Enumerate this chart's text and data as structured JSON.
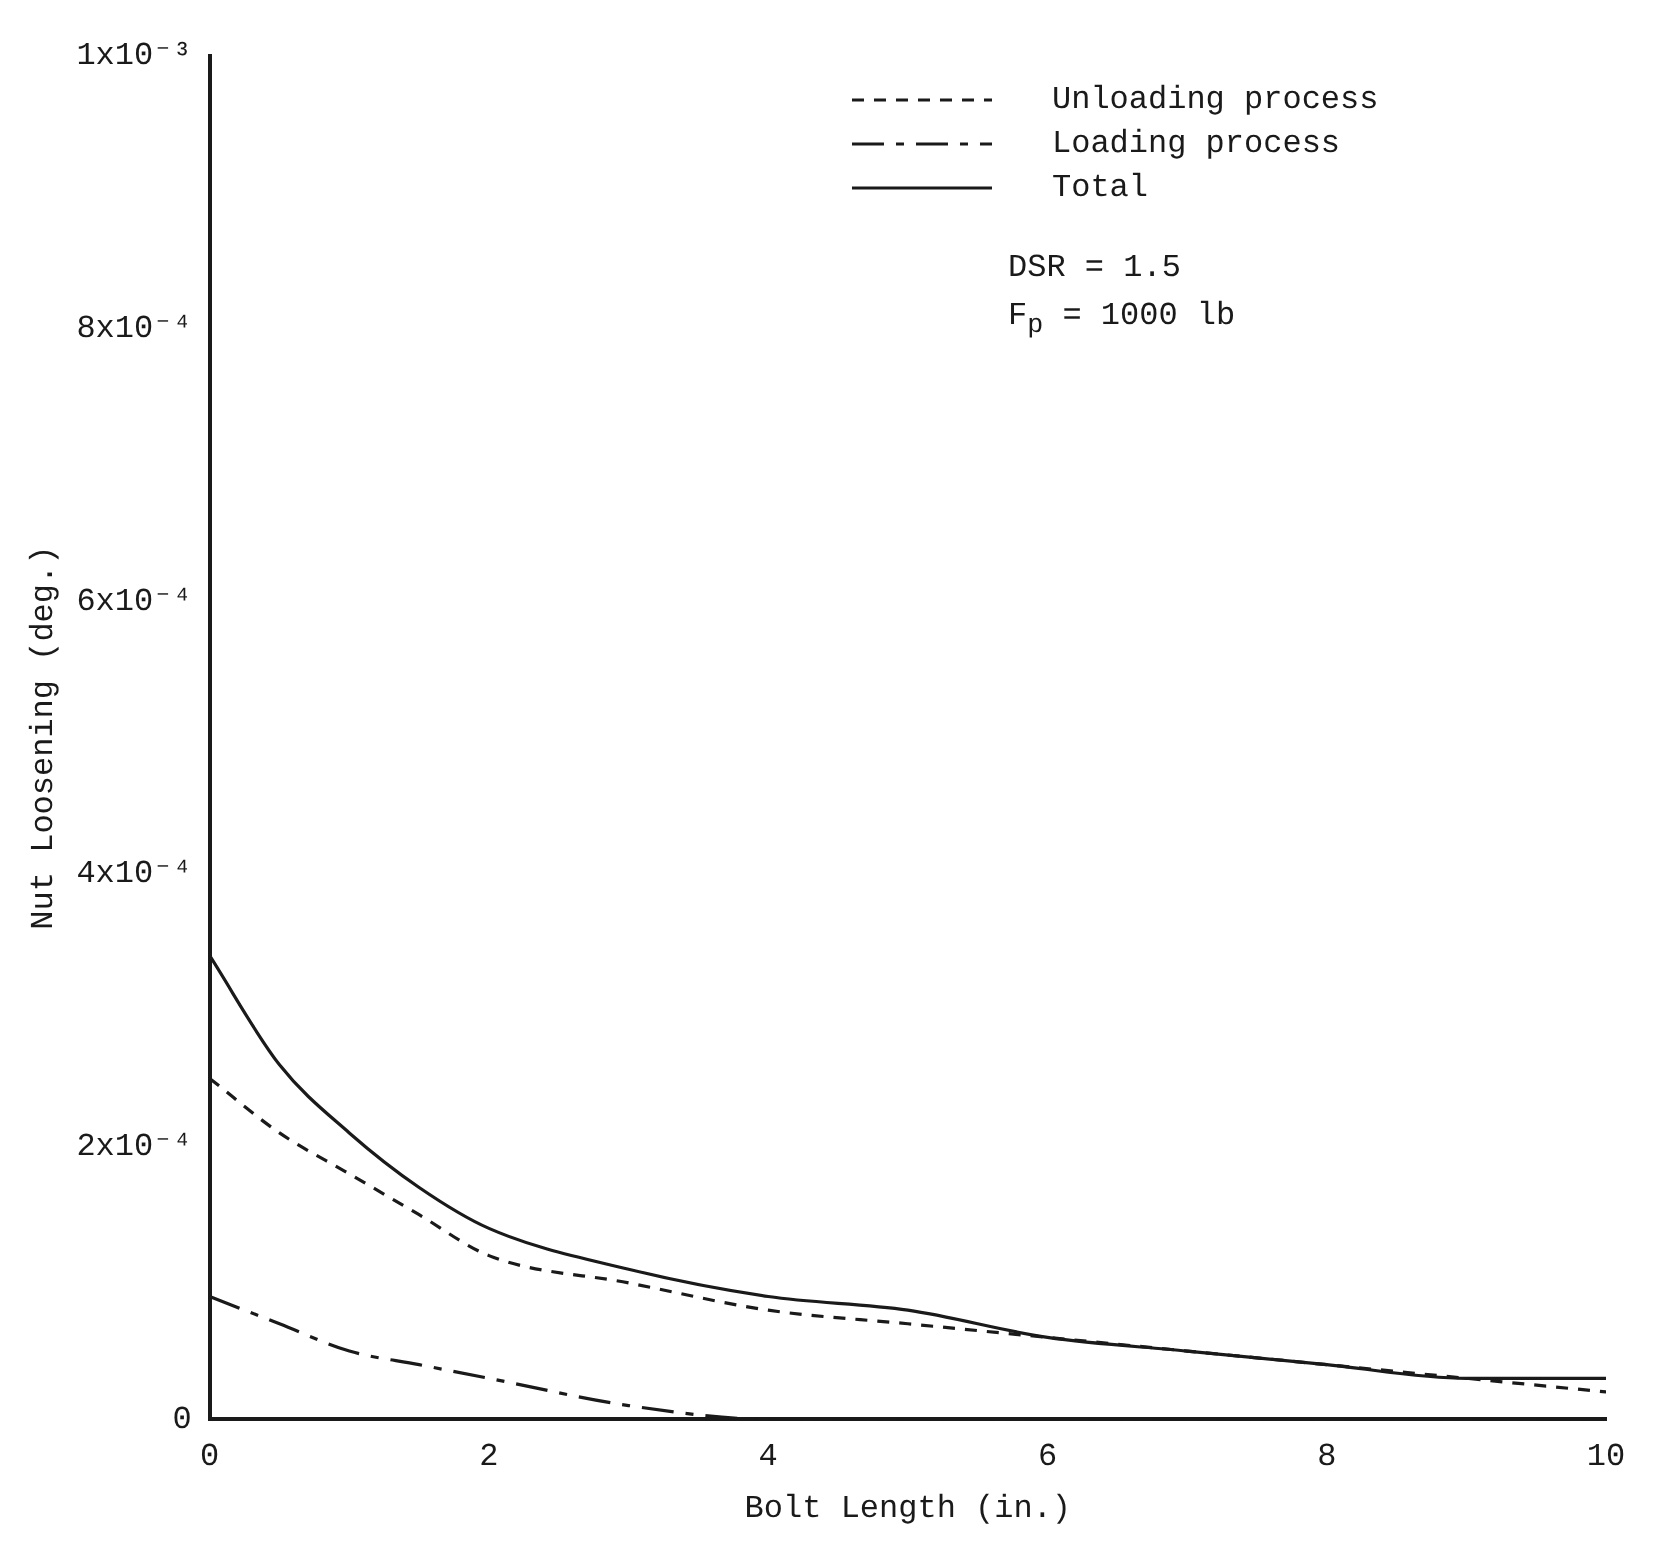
{
  "chart_data": {
    "type": "line",
    "xlabel": "Bolt Length (in.)",
    "ylabel": "Nut Loosening (deg.)",
    "x": [
      0,
      0.5,
      1,
      1.5,
      2,
      3,
      4,
      5,
      6,
      7,
      8,
      9,
      10
    ],
    "series": [
      {
        "name": "Unloading process",
        "color": "#1a1a1a",
        "line_style": "dashed",
        "values": [
          0.00025,
          0.00021,
          0.00018,
          0.00015,
          0.00012,
          0.0001,
          8e-05,
          7e-05,
          6e-05,
          5e-05,
          4e-05,
          3e-05,
          2e-05
        ]
      },
      {
        "name": "Loading process",
        "color": "#1a1a1a",
        "line_style": "dashed",
        "values": [
          9e-05,
          7e-05,
          5e-05,
          4e-05,
          3e-05,
          1e-05,
          0,
          0,
          0,
          0,
          0,
          0,
          0
        ]
      },
      {
        "name": "Total",
        "color": "#1a1a1a",
        "line_style": "solid",
        "values": [
          0.00034,
          0.00026,
          0.00021,
          0.00017,
          0.00014,
          0.00011,
          9e-05,
          8e-05,
          6e-05,
          5e-05,
          4e-05,
          3e-05,
          3e-05
        ]
      }
    ],
    "xlim": [
      0,
      10
    ],
    "xticks": [
      0,
      2,
      4,
      6,
      8,
      10
    ],
    "ylim": [
      0,
      0.001
    ],
    "yticks": [
      0,
      {
        "value": 0.0002,
        "label": "2x10⁻⁴"
      },
      {
        "value": 0.0004,
        "label": "4x10⁻⁴"
      },
      {
        "value": 0.0006,
        "label": "6x10⁻⁴"
      },
      {
        "value": 0.0008,
        "label": "8x10⁻⁴"
      },
      {
        "value": 0.001,
        "label": "1x10⁻³"
      }
    ],
    "grid": false,
    "legend": "top right",
    "marker": "none",
    "annotations": [
      "DSR = 1.5",
      "F$_{p}$ = 1000 lb"
    ]
  }
}
